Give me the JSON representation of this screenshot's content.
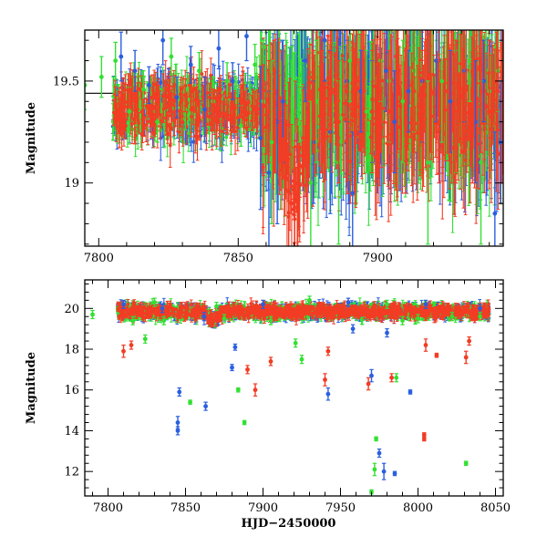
{
  "chart_data": [
    {
      "id": "top",
      "type": "scatter",
      "title": "",
      "xlabel": "",
      "ylabel": "Magnitude",
      "xlim": [
        7795,
        7945
      ],
      "ylim": [
        19.75,
        18.69
      ],
      "y_inverted": true,
      "xticks": [
        7800,
        7850,
        7900
      ],
      "yticks": [
        19,
        19.5
      ],
      "ytick_labels": [
        "19",
        "19.5"
      ],
      "grid": false,
      "legend": "none",
      "series": [
        {
          "color": "#2a5fe0",
          "points": [
            [
              7808,
              19.62,
              0.12
            ],
            [
              7813,
              19.55,
              0.1
            ],
            [
              7818,
              19.48,
              0.09
            ],
            [
              7823,
              19.7,
              0.12
            ],
            [
              7828,
              19.42,
              0.1
            ],
            [
              7833,
              19.58,
              0.09
            ],
            [
              7838,
              19.36,
              0.16
            ],
            [
              7843,
              19.66,
              0.1
            ],
            [
              7848,
              19.5,
              0.09
            ],
            [
              7853,
              19.72,
              0.12
            ],
            [
              7858,
              19.22,
              0.35
            ],
            [
              7861,
              19.05,
              0.4
            ],
            [
              7864,
              19.3,
              0.5
            ],
            [
              7866,
              19.4,
              0.3
            ],
            [
              7874,
              19.6,
              0.2
            ],
            [
              7877,
              19.2,
              0.3
            ],
            [
              7881,
              19.7,
              0.2
            ],
            [
              7883,
              19.25,
              0.4
            ],
            [
              7889,
              19.5,
              0.2
            ],
            [
              7891,
              18.95,
              0.3
            ],
            [
              7894,
              19.45,
              0.2
            ],
            [
              7898,
              19.35,
              0.25
            ],
            [
              7903,
              19.55,
              0.2
            ],
            [
              7906,
              19.3,
              0.25
            ],
            [
              7911,
              19.45,
              0.2
            ],
            [
              7916,
              19.5,
              0.3
            ],
            [
              7921,
              19.6,
              0.3
            ],
            [
              7926,
              19.4,
              0.25
            ],
            [
              7931,
              19.55,
              0.25
            ],
            [
              7935,
              19.3,
              0.3
            ],
            [
              7938,
              19.5,
              0.2
            ],
            [
              7942,
              18.85,
              0.4
            ],
            [
              7944,
              19.2,
              0.3
            ]
          ]
        },
        {
          "color": "#33e033",
          "points": [
            [
              7795,
              19.48,
              0.12
            ],
            [
              7801,
              19.52,
              0.1
            ],
            [
              7806,
              19.6,
              0.09
            ],
            [
              7811,
              19.35,
              0.12
            ],
            [
              7816,
              19.46,
              0.09
            ],
            [
              7821,
              19.3,
              0.1
            ],
            [
              7826,
              19.62,
              0.09
            ],
            [
              7831,
              19.36,
              0.1
            ],
            [
              7836,
              19.55,
              0.09
            ],
            [
              7841,
              19.4,
              0.1
            ],
            [
              7846,
              19.5,
              0.09
            ],
            [
              7851,
              19.28,
              0.1
            ],
            [
              7856,
              19.58,
              0.1
            ],
            [
              7859,
              19.4,
              0.3
            ],
            [
              7862,
              19.2,
              0.4
            ],
            [
              7872,
              19.5,
              0.3
            ],
            [
              7876,
              19.0,
              0.4
            ],
            [
              7878,
              19.4,
              0.3
            ],
            [
              7886,
              19.1,
              0.4
            ],
            [
              7890,
              19.6,
              0.2
            ],
            [
              7896,
              19.35,
              0.3
            ],
            [
              7901,
              19.6,
              0.2
            ],
            [
              7904,
              19.5,
              0.3
            ],
            [
              7909,
              19.4,
              0.3
            ],
            [
              7913,
              19.55,
              0.3
            ],
            [
              7918,
              19.1,
              0.4
            ],
            [
              7923,
              19.5,
              0.3
            ],
            [
              7928,
              19.35,
              0.3
            ],
            [
              7933,
              19.6,
              0.2
            ],
            [
              7937,
              19.1,
              0.4
            ],
            [
              7940,
              19.45,
              0.3
            ],
            [
              7943,
              19.55,
              0.2
            ]
          ]
        },
        {
          "color": "#f23c24",
          "points": [
            [
              7806,
              19.38,
              0.09
            ],
            [
              7811,
              19.45,
              0.08
            ],
            [
              7816,
              19.32,
              0.09
            ],
            [
              7821,
              19.4,
              0.08
            ],
            [
              7826,
              19.35,
              0.09
            ],
            [
              7831,
              19.43,
              0.08
            ],
            [
              7836,
              19.3,
              0.09
            ],
            [
              7841,
              19.38,
              0.08
            ],
            [
              7846,
              19.33,
              0.09
            ],
            [
              7851,
              19.4,
              0.08
            ],
            [
              7856,
              19.36,
              0.09
            ],
            [
              7859,
              19.38,
              0.2
            ],
            [
              7861,
              19.35,
              0.25
            ],
            [
              7863,
              19.3,
              0.25
            ],
            [
              7865,
              19.2,
              0.1
            ],
            [
              7866,
              19.12,
              0.1
            ],
            [
              7867,
              19.03,
              0.06
            ],
            [
              7868,
              18.96,
              0.05
            ],
            [
              7869,
              18.9,
              0.05
            ],
            [
              7870,
              18.87,
              0.05
            ],
            [
              7871,
              18.91,
              0.05
            ],
            [
              7872,
              18.99,
              0.06
            ],
            [
              7873,
              19.08,
              0.08
            ],
            [
              7874,
              19.18,
              0.1
            ],
            [
              7875,
              19.3,
              0.12
            ],
            [
              7877,
              19.4,
              0.25
            ],
            [
              7880,
              19.35,
              0.3
            ],
            [
              7883,
              19.45,
              0.25
            ],
            [
              7886,
              19.3,
              0.3
            ],
            [
              7889,
              19.45,
              0.3
            ],
            [
              7892,
              19.25,
              0.35
            ],
            [
              7895,
              19.45,
              0.3
            ],
            [
              7898,
              19.35,
              0.3
            ],
            [
              7901,
              19.45,
              0.3
            ],
            [
              7904,
              19.35,
              0.3
            ],
            [
              7907,
              19.45,
              0.3
            ],
            [
              7910,
              19.3,
              0.35
            ],
            [
              7913,
              19.45,
              0.3
            ],
            [
              7916,
              19.35,
              0.3
            ],
            [
              7919,
              19.45,
              0.3
            ],
            [
              7922,
              19.3,
              0.3
            ],
            [
              7925,
              19.45,
              0.3
            ],
            [
              7928,
              19.35,
              0.35
            ],
            [
              7931,
              19.45,
              0.3
            ],
            [
              7934,
              19.3,
              0.3
            ],
            [
              7937,
              19.45,
              0.3
            ],
            [
              7940,
              19.35,
              0.35
            ],
            [
              7943,
              19.45,
              0.3
            ]
          ]
        }
      ],
      "reference_line": [
        [
          7795,
          19.44
        ],
        [
          7806,
          19.44
        ]
      ]
    },
    {
      "id": "bottom",
      "type": "scatter",
      "title": "",
      "xlabel": "HJD−2450000",
      "ylabel": "Magnitude",
      "xlim": [
        7785,
        8055
      ],
      "ylim": [
        21.4,
        10.8
      ],
      "y_inverted": true,
      "xticks": [
        7800,
        7850,
        7900,
        7950,
        8000,
        8050
      ],
      "yticks": [
        12,
        14,
        16,
        18,
        20
      ],
      "ytick_labels": [
        "12",
        "14",
        "16",
        "18",
        "20"
      ],
      "grid": false,
      "legend": "none",
      "series": [
        {
          "color": "#2a5fe0",
          "points": [
            [
              7845,
              14.0,
              0.2
            ],
            [
              7845,
              14.4,
              0.3
            ],
            [
              7846,
              15.9,
              0.2
            ],
            [
              7863,
              15.2,
              0.2
            ],
            [
              7880,
              17.1,
              0.15
            ],
            [
              7882,
              18.1,
              0.15
            ],
            [
              7942,
              15.8,
              0.3
            ],
            [
              7958,
              19.0,
              0.2
            ],
            [
              7970,
              16.7,
              0.3
            ],
            [
              7975,
              12.9,
              0.2
            ],
            [
              7978,
              12.0,
              0.4
            ],
            [
              7980,
              18.8,
              0.2
            ],
            [
              7985,
              11.9,
              0.1
            ],
            [
              7995,
              15.9,
              0.1
            ],
            [
              7810,
              20.2,
              0.2
            ],
            [
              7835,
              20.0,
              0.2
            ],
            [
              7862,
              19.6,
              0.2
            ],
            [
              7900,
              20.2,
              0.2
            ],
            [
              7955,
              20.3,
              0.2
            ],
            [
              8005,
              20.2,
              0.2
            ],
            [
              8040,
              20.0,
              0.2
            ]
          ]
        },
        {
          "color": "#33e033",
          "points": [
            [
              7790,
              19.7,
              0.2
            ],
            [
              7816,
              19.4,
              0.2
            ],
            [
              7824,
              18.5,
              0.2
            ],
            [
              7836,
              19.4,
              0.2
            ],
            [
              7853,
              15.4,
              0.1
            ],
            [
              7875,
              19.5,
              0.2
            ],
            [
              7884,
              16.0,
              0.1
            ],
            [
              7888,
              14.4,
              0.1
            ],
            [
              7905,
              19.4,
              0.2
            ],
            [
              7921,
              18.3,
              0.2
            ],
            [
              7925,
              17.5,
              0.2
            ],
            [
              7970,
              11.0,
              0.1
            ],
            [
              7972,
              12.1,
              0.3
            ],
            [
              7973,
              13.6,
              0.1
            ],
            [
              7986,
              16.6,
              0.2
            ],
            [
              7990,
              19.4,
              0.2
            ],
            [
              8000,
              19.5,
              0.2
            ],
            [
              8022,
              19.6,
              0.2
            ],
            [
              8031,
              12.4,
              0.1
            ],
            [
              8040,
              19.6,
              0.2
            ],
            [
              7830,
              20.3,
              0.2
            ],
            [
              7870,
              20.1,
              0.2
            ],
            [
              7930,
              20.4,
              0.2
            ],
            [
              7980,
              20.2,
              0.2
            ]
          ]
        },
        {
          "color": "#f23c24",
          "points": [
            [
              7810,
              17.9,
              0.3
            ],
            [
              7815,
              18.2,
              0.2
            ],
            [
              7890,
              17.0,
              0.2
            ],
            [
              7895,
              16.0,
              0.3
            ],
            [
              7905,
              17.4,
              0.2
            ],
            [
              7940,
              16.5,
              0.3
            ],
            [
              7942,
              17.9,
              0.2
            ],
            [
              7968,
              16.3,
              0.3
            ],
            [
              7983,
              16.6,
              0.2
            ],
            [
              8004,
              13.6,
              0.1
            ],
            [
              8004,
              13.8,
              0.1
            ],
            [
              8005,
              18.2,
              0.3
            ],
            [
              8012,
              17.7,
              0.1
            ],
            [
              8031,
              17.6,
              0.3
            ],
            [
              8033,
              18.4,
              0.2
            ],
            [
              8036,
              19.6,
              0.2
            ],
            [
              7820,
              19.8,
              0.2
            ],
            [
              7865,
              19.5,
              0.2
            ],
            [
              7915,
              19.9,
              0.2
            ],
            [
              7960,
              19.8,
              0.2
            ],
            [
              8025,
              19.9,
              0.2
            ]
          ]
        }
      ]
    }
  ]
}
